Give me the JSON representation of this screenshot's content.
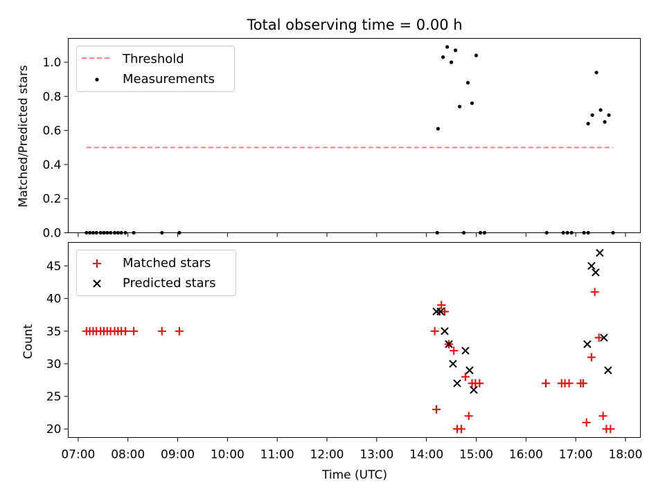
{
  "figure": {
    "title": "Total observing time = 0.00 h"
  },
  "chart_data": [
    {
      "type": "scatter",
      "panel": "top",
      "ylabel": "Matched/Predicted stars",
      "xlim": [
        "06:48",
        "18:18"
      ],
      "ylim": [
        0,
        1.14
      ],
      "yticks": [
        0.0,
        0.2,
        0.4,
        0.6,
        0.8,
        1.0
      ],
      "ytick_labels": [
        "0.0",
        "0.2",
        "0.4",
        "0.6",
        "0.8",
        "1.0"
      ],
      "xticks_visible": false,
      "grid": false,
      "legend_position": "upper-left",
      "threshold": {
        "name": "Threshold",
        "value": 0.5,
        "x": [
          "07:10",
          "17:45"
        ],
        "color": "#ff8080",
        "style": "dashed"
      },
      "series": [
        {
          "name": "Measurements",
          "marker": "dot",
          "color": "#000000",
          "points": [
            [
              "07:10",
              0
            ],
            [
              "07:14",
              0
            ],
            [
              "07:18",
              0
            ],
            [
              "07:22",
              0
            ],
            [
              "07:27",
              0
            ],
            [
              "07:31",
              0
            ],
            [
              "07:35",
              0
            ],
            [
              "07:39",
              0
            ],
            [
              "07:44",
              0
            ],
            [
              "07:48",
              0
            ],
            [
              "07:52",
              0
            ],
            [
              "07:57",
              0
            ],
            [
              "08:07",
              0
            ],
            [
              "08:41",
              0
            ],
            [
              "09:02",
              0
            ],
            [
              "14:13",
              0.0
            ],
            [
              "14:14",
              0.61
            ],
            [
              "14:20",
              1.03
            ],
            [
              "14:25",
              1.09
            ],
            [
              "14:30",
              1.0
            ],
            [
              "14:35",
              1.07
            ],
            [
              "14:40",
              0.74
            ],
            [
              "14:45",
              0.0
            ],
            [
              "14:50",
              0.88
            ],
            [
              "14:55",
              0.76
            ],
            [
              "15:00",
              1.04
            ],
            [
              "15:05",
              0.0
            ],
            [
              "15:10",
              0.0
            ],
            [
              "16:25",
              0.0
            ],
            [
              "16:45",
              0.0
            ],
            [
              "16:50",
              0.0
            ],
            [
              "16:55",
              0.0
            ],
            [
              "17:10",
              0.0
            ],
            [
              "17:15",
              0.0
            ],
            [
              "17:15",
              0.64
            ],
            [
              "17:20",
              0.69
            ],
            [
              "17:25",
              0.94
            ],
            [
              "17:30",
              0.72
            ],
            [
              "17:35",
              0.65
            ],
            [
              "17:40",
              0.69
            ],
            [
              "17:45",
              0.0
            ]
          ]
        }
      ]
    },
    {
      "type": "scatter",
      "panel": "bottom",
      "xlabel": "Time (UTC)",
      "ylabel": "Count",
      "xlim": [
        "06:48",
        "18:18"
      ],
      "ylim": [
        18.7,
        48.6
      ],
      "yticks": [
        20,
        25,
        30,
        35,
        40,
        45
      ],
      "ytick_labels": [
        "20",
        "25",
        "30",
        "35",
        "40",
        "45"
      ],
      "xticks": [
        "07:00",
        "08:00",
        "09:00",
        "10:00",
        "11:00",
        "12:00",
        "13:00",
        "14:00",
        "15:00",
        "16:00",
        "17:00",
        "18:00"
      ],
      "grid": false,
      "legend_position": "upper-left",
      "series": [
        {
          "name": "Matched stars",
          "marker": "plus",
          "color": "#ff0000",
          "points": [
            [
              "07:10",
              35
            ],
            [
              "07:14",
              35
            ],
            [
              "07:18",
              35
            ],
            [
              "07:22",
              35
            ],
            [
              "07:27",
              35
            ],
            [
              "07:31",
              35
            ],
            [
              "07:35",
              35
            ],
            [
              "07:39",
              35
            ],
            [
              "07:44",
              35
            ],
            [
              "07:48",
              35
            ],
            [
              "07:52",
              35
            ],
            [
              "07:57",
              35
            ],
            [
              "08:07",
              35
            ],
            [
              "08:41",
              35
            ],
            [
              "09:02",
              35
            ],
            [
              "14:10",
              35
            ],
            [
              "14:12",
              23
            ],
            [
              "14:16",
              38
            ],
            [
              "14:18",
              39
            ],
            [
              "14:22",
              38
            ],
            [
              "14:27",
              33
            ],
            [
              "14:33",
              32
            ],
            [
              "14:37",
              20
            ],
            [
              "14:42",
              20
            ],
            [
              "14:47",
              28
            ],
            [
              "14:51",
              22
            ],
            [
              "14:55",
              27
            ],
            [
              "14:59",
              27
            ],
            [
              "15:04",
              27
            ],
            [
              "16:24",
              27
            ],
            [
              "16:43",
              27
            ],
            [
              "16:47",
              27
            ],
            [
              "16:52",
              27
            ],
            [
              "17:06",
              27
            ],
            [
              "17:09",
              27
            ],
            [
              "17:13",
              21
            ],
            [
              "17:19",
              31
            ],
            [
              "17:23",
              41
            ],
            [
              "17:28",
              34
            ],
            [
              "17:33",
              22
            ],
            [
              "17:37",
              20
            ],
            [
              "17:42",
              20
            ]
          ]
        },
        {
          "name": "Predicted stars",
          "marker": "x",
          "color": "#000000",
          "points": [
            [
              "14:12",
              38
            ],
            [
              "14:17",
              38
            ],
            [
              "14:22",
              35
            ],
            [
              "14:27",
              33
            ],
            [
              "14:32",
              30
            ],
            [
              "14:37",
              27
            ],
            [
              "14:47",
              32
            ],
            [
              "14:52",
              29
            ],
            [
              "14:57",
              26
            ],
            [
              "17:14",
              33
            ],
            [
              "17:19",
              45
            ],
            [
              "17:24",
              44
            ],
            [
              "17:29",
              47
            ],
            [
              "17:34",
              34
            ],
            [
              "17:39",
              29
            ]
          ]
        }
      ]
    }
  ]
}
